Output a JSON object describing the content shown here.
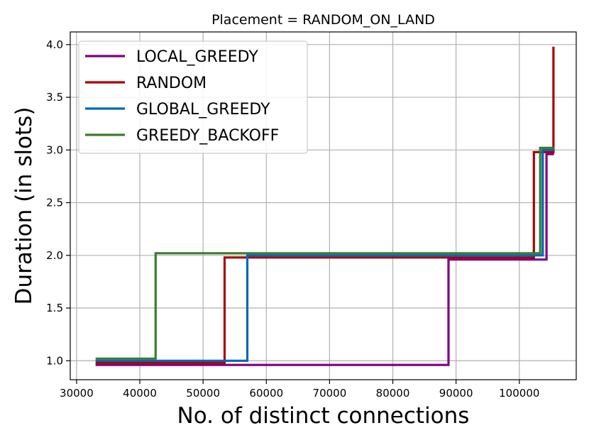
{
  "chart_data": {
    "type": "line",
    "title": "Placement = RANDOM_ON_LAND",
    "xlabel": "No. of distinct connections",
    "ylabel": "Duration (in slots)",
    "xlim": [
      29000,
      109000
    ],
    "ylim": [
      0.82,
      4.12
    ],
    "xticks": [
      30000,
      40000,
      50000,
      60000,
      70000,
      80000,
      90000,
      100000
    ],
    "yticks": [
      1.0,
      1.5,
      2.0,
      2.5,
      3.0,
      3.5,
      4.0
    ],
    "xtick_labels": [
      "30000",
      "40000",
      "50000",
      "60000",
      "70000",
      "80000",
      "90000",
      "100000"
    ],
    "ytick_labels": [
      "1.0",
      "1.5",
      "2.0",
      "2.5",
      "3.0",
      "3.5",
      "4.0"
    ],
    "grid": true,
    "legend_position": "top-left",
    "step": true,
    "series": [
      {
        "name": "LOCAL_GREEDY",
        "color": "#800080",
        "x": [
          33000,
          88800,
          88800,
          104300,
          104300,
          105300,
          105300,
          105500
        ],
        "y": [
          0.96,
          0.96,
          1.96,
          1.96,
          2.96,
          2.96,
          2.97,
          2.97
        ]
      },
      {
        "name": "RANDOM",
        "color": "#aa0000",
        "x": [
          33000,
          53400,
          53400,
          102300,
          102300,
          105400,
          105400
        ],
        "y": [
          0.98,
          0.98,
          1.98,
          1.98,
          2.98,
          2.98,
          3.98
        ]
      },
      {
        "name": "GLOBAL_GREEDY",
        "color": "#0066bb",
        "x": [
          33000,
          57000,
          57000,
          103700,
          103700,
          105500
        ],
        "y": [
          1.0,
          1.0,
          2.0,
          2.0,
          3.0,
          3.0
        ]
      },
      {
        "name": "GREEDY_BACKOFF",
        "color": "#3a7d2c",
        "x": [
          33000,
          42500,
          42500,
          103300,
          103300,
          105500
        ],
        "y": [
          1.02,
          1.02,
          2.02,
          2.02,
          3.02,
          3.02
        ]
      }
    ]
  }
}
